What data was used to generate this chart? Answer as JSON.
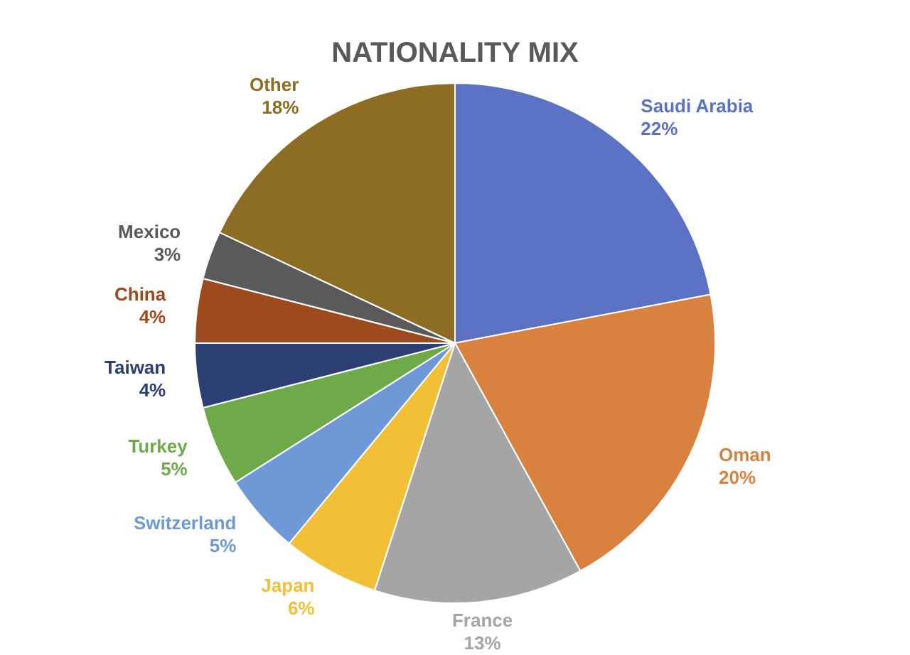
{
  "chart_data": {
    "type": "pie",
    "title": "NATIONALITY MIX",
    "categories": [
      "Saudi Arabia",
      "Oman",
      "France",
      "Japan",
      "Switzerland",
      "Turkey",
      "Taiwan",
      "China",
      "Mexico",
      "Other"
    ],
    "values": [
      22,
      20,
      13,
      6,
      5,
      5,
      4,
      4,
      3,
      18
    ],
    "value_labels": [
      "22%",
      "20%",
      "13%",
      "6%",
      "5%",
      "5%",
      "4%",
      "4%",
      "3%",
      "18%"
    ],
    "colors": [
      "#5b72c4",
      "#d9823f",
      "#a5a5a5",
      "#f2c037",
      "#6f99d6",
      "#6eaa48",
      "#2c3f73",
      "#9c4a1e",
      "#5a5a5a",
      "#8c6d23"
    ],
    "legend": false
  }
}
